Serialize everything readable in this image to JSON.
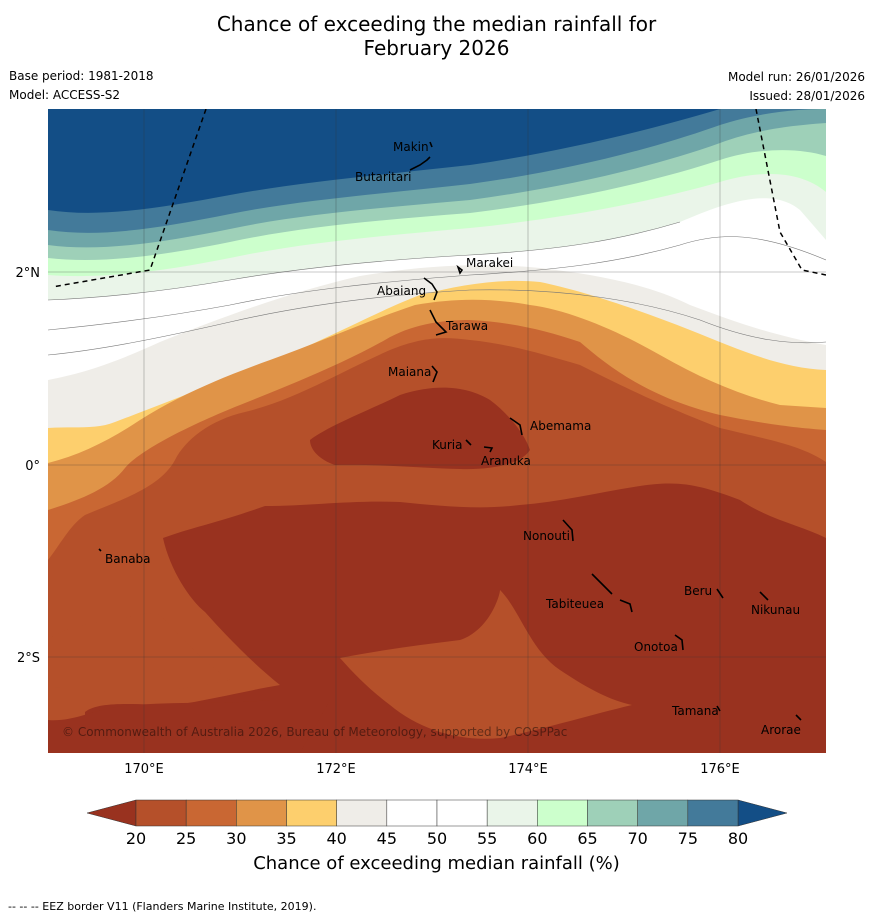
{
  "title": {
    "line1": "Chance of exceeding the median rainfall for",
    "line2": "February 2026"
  },
  "meta": {
    "base_period": "Base period: 1981-2018",
    "model": "Model: ACCESS-S2",
    "model_run": "Model run: 26/01/2026",
    "issued": "Issued: 28/01/2026"
  },
  "copyright": "© Commonwealth of Australia 2026, Bureau of Meteorology, supported by COSPPac",
  "axes": {
    "lon_ticks": [
      "170°E",
      "172°E",
      "174°E",
      "176°E"
    ],
    "lat_ticks": [
      "2°N",
      "0°",
      "2°S"
    ]
  },
  "places": [
    {
      "name": "Makin"
    },
    {
      "name": "Butaritari"
    },
    {
      "name": "Marakei"
    },
    {
      "name": "Abaiang"
    },
    {
      "name": "Tarawa"
    },
    {
      "name": "Maiana"
    },
    {
      "name": "Abemama"
    },
    {
      "name": "Kuria"
    },
    {
      "name": "Aranuka"
    },
    {
      "name": "Banaba"
    },
    {
      "name": "Nonouti"
    },
    {
      "name": "Tabiteuea"
    },
    {
      "name": "Beru"
    },
    {
      "name": "Nikunau"
    },
    {
      "name": "Onotoa"
    },
    {
      "name": "Tamana"
    },
    {
      "name": "Arorae"
    }
  ],
  "colorbar": {
    "ticks": [
      "20",
      "25",
      "30",
      "35",
      "40",
      "45",
      "50",
      "55",
      "60",
      "65",
      "70",
      "75",
      "80"
    ],
    "colors": {
      "lt20": "#99321f",
      "b20": "#b5502a",
      "b25": "#c96733",
      "b30": "#e09448",
      "b35": "#fdcf6d",
      "b40": "#efede8",
      "b45": "#ffffff",
      "b50": "#ffffff",
      "b55": "#eaf5e9",
      "b60": "#ccffcc",
      "b65": "#9ed0b8",
      "b70": "#6fa6a8",
      "b75": "#437a9a",
      "gt80": "#134e86"
    },
    "label": "Chance of exceeding median rainfall (%)"
  },
  "footer": "-- -- -- EEZ border V11 (Flanders Marine Institute, 2019)."
}
